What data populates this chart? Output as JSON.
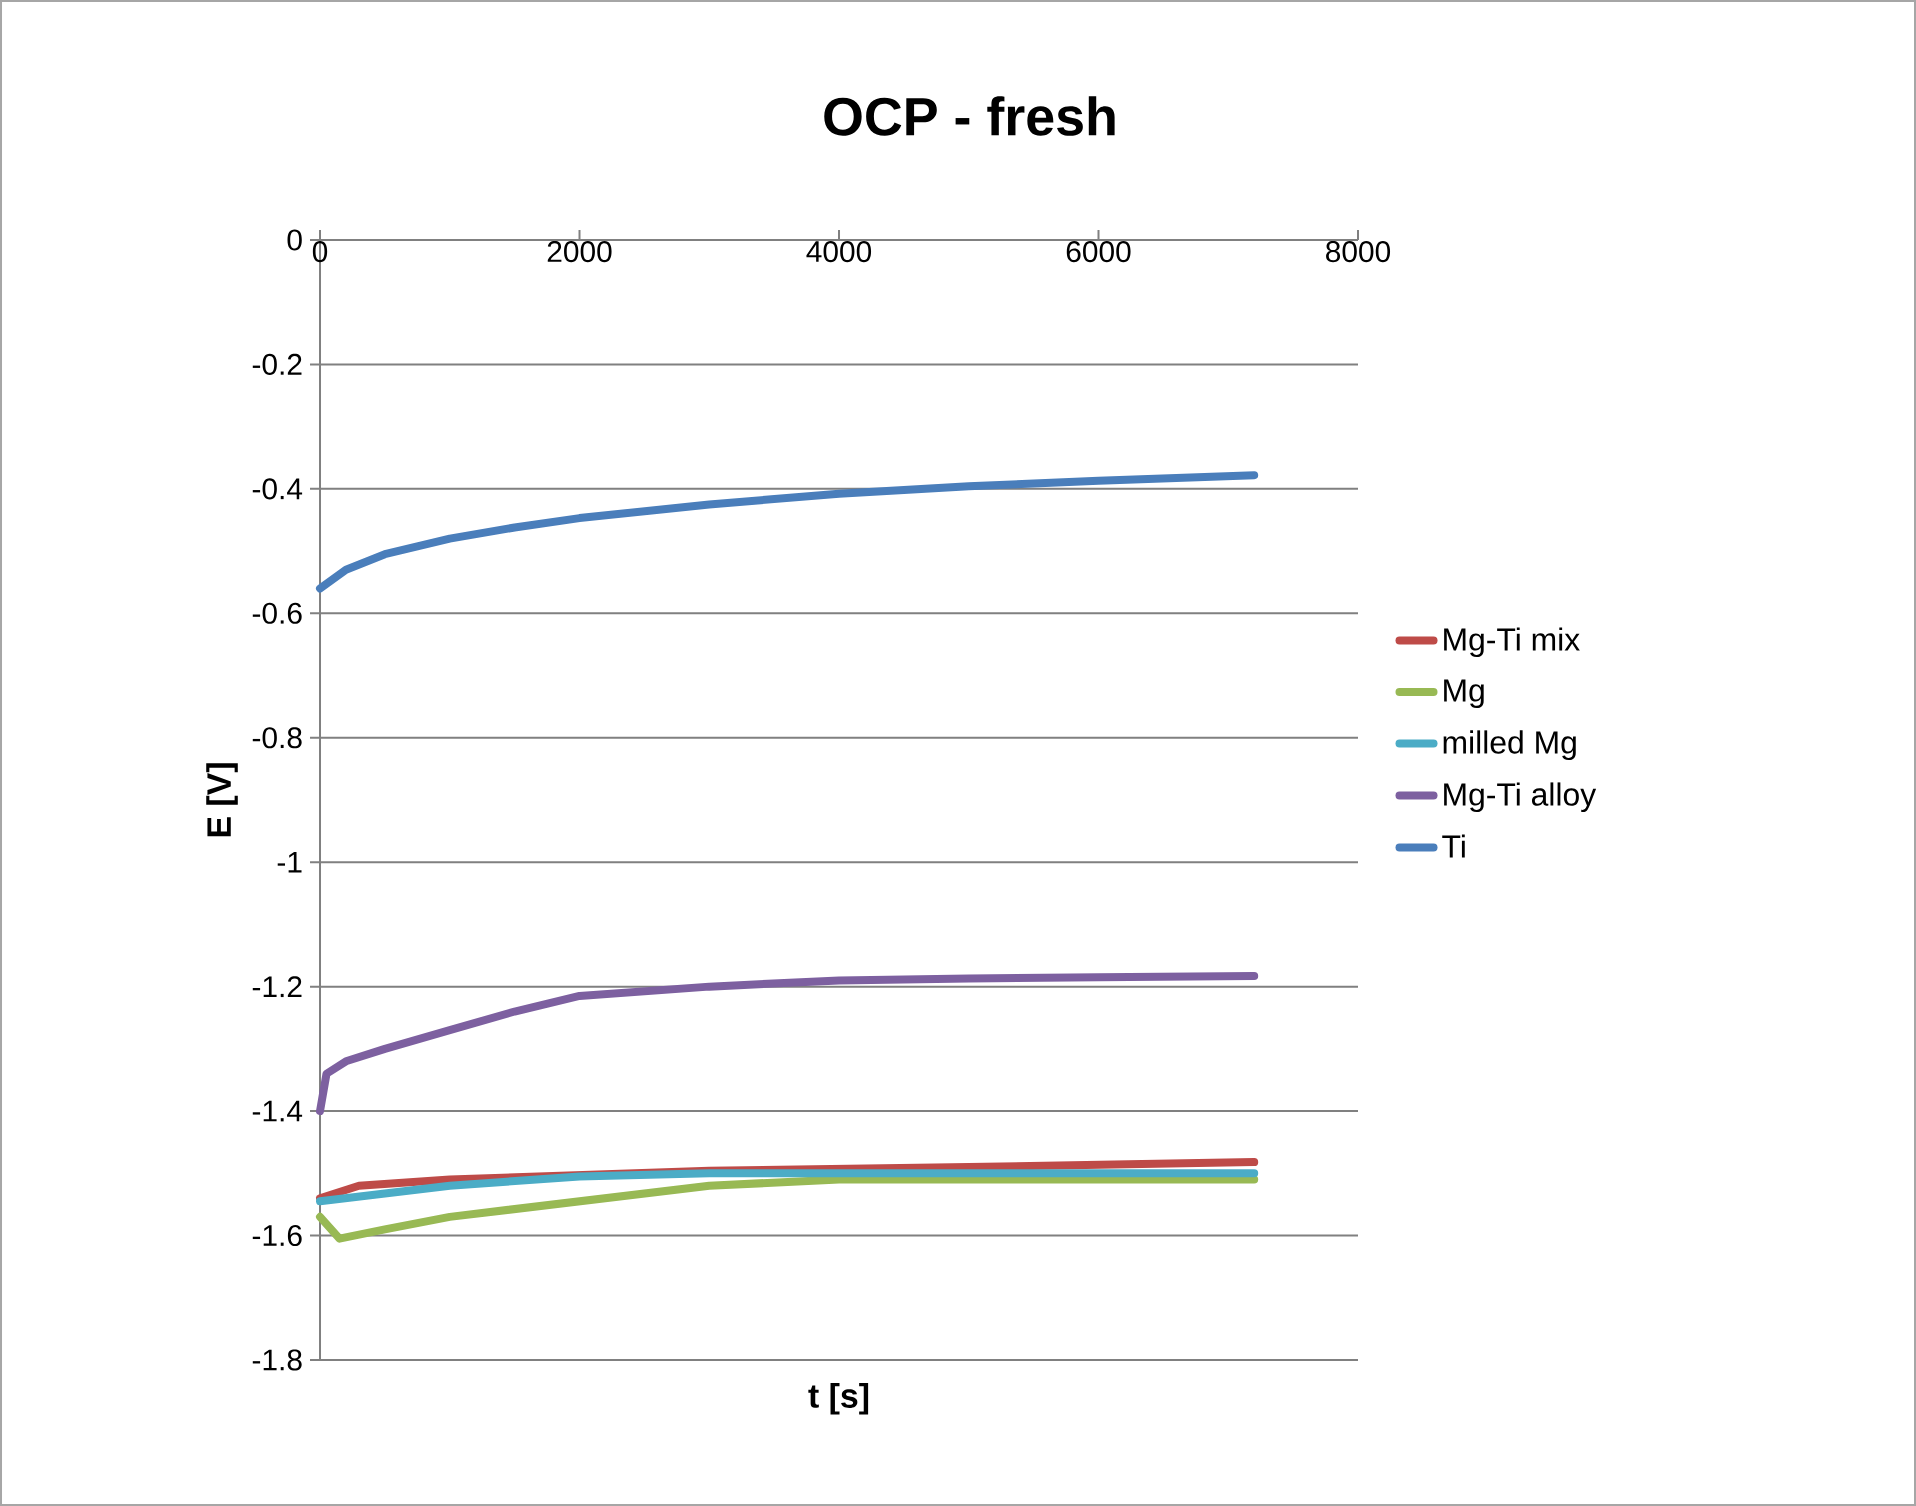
{
  "chart_data": {
    "type": "line",
    "title": "OCP - fresh",
    "xlabel": "t [s]",
    "ylabel": "E [V]",
    "xlim": [
      0,
      8000
    ],
    "xticks": [
      0,
      2000,
      4000,
      6000,
      8000
    ],
    "ylim": [
      -1.8,
      0
    ],
    "yticks": [
      -1.8,
      -1.6,
      -1.4,
      -1.2,
      -1,
      -0.8,
      -0.6,
      -0.4,
      -0.2,
      0
    ],
    "grid": "y",
    "legend": "right",
    "marker": "none",
    "line_style": "solid",
    "series": [
      {
        "name": "Mg-Ti mix",
        "color": "#be4b48",
        "x": [
          0,
          300,
          1000,
          3000,
          5000,
          7200
        ],
        "values": [
          -1.54,
          -1.52,
          -1.51,
          -1.496,
          -1.49,
          -1.482
        ]
      },
      {
        "name": "Mg",
        "color": "#98b954",
        "x": [
          0,
          150,
          500,
          1000,
          2000,
          3000,
          4000,
          7200
        ],
        "values": [
          -1.57,
          -1.605,
          -1.59,
          -1.57,
          -1.545,
          -1.52,
          -1.51,
          -1.51
        ]
      },
      {
        "name": "milled Mg",
        "color": "#4bacc6",
        "x": [
          0,
          1000,
          2000,
          3000,
          7200
        ],
        "values": [
          -1.545,
          -1.52,
          -1.505,
          -1.5,
          -1.5
        ]
      },
      {
        "name": "Mg-Ti alloy",
        "color": "#7d60a0",
        "x": [
          0,
          50,
          200,
          500,
          1000,
          1500,
          2000,
          3000,
          4000,
          5000,
          6000,
          7200
        ],
        "values": [
          -1.4,
          -1.34,
          -1.32,
          -1.3,
          -1.27,
          -1.24,
          -1.215,
          -1.2,
          -1.19,
          -1.187,
          -1.185,
          -1.183
        ]
      },
      {
        "name": "Ti",
        "color": "#4a7ebb",
        "x": [
          0,
          200,
          500,
          1000,
          1500,
          2000,
          3000,
          4000,
          5000,
          6000,
          7200
        ],
        "values": [
          -0.56,
          -0.53,
          -0.505,
          -0.48,
          -0.462,
          -0.447,
          -0.425,
          -0.408,
          -0.396,
          -0.387,
          -0.378
        ]
      }
    ]
  }
}
